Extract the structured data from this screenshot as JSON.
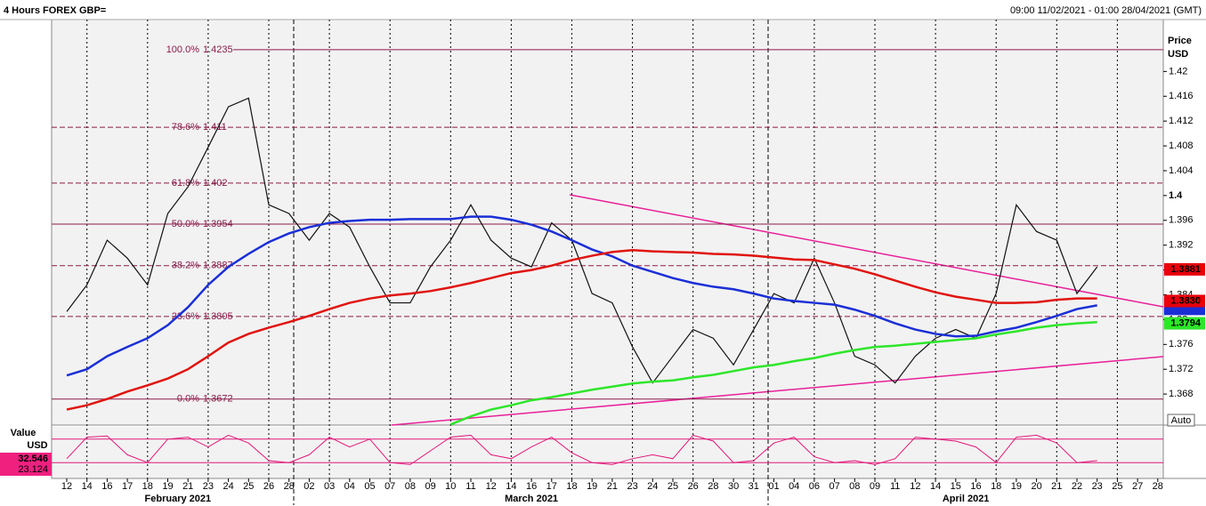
{
  "chart_data": {
    "type": "line",
    "title": "4 Hours FOREX GBP=",
    "subtitle": "09:00 11/02/2021 - 01:00 28/04/2021 (GMT)",
    "ylabel": "Price",
    "yunit": "USD",
    "categories": [
      "12",
      "14",
      "16",
      "17",
      "18",
      "19",
      "21",
      "23",
      "24",
      "25",
      "26",
      "28",
      "02",
      "03",
      "04",
      "05",
      "07",
      "08",
      "09",
      "10",
      "11",
      "12",
      "14",
      "16",
      "17",
      "18",
      "19",
      "21",
      "23",
      "24",
      "25",
      "26",
      "28",
      "30",
      "31",
      "01",
      "04",
      "06",
      "07",
      "08",
      "09",
      "11",
      "12",
      "14",
      "15",
      "16",
      "18",
      "19",
      "20",
      "21",
      "22",
      "23",
      "25",
      "27",
      "28"
    ],
    "months": [
      {
        "label": "February 2021",
        "start": 0
      },
      {
        "label": "March 2021",
        "start": 12
      },
      {
        "label": "April 2021",
        "start": 35
      }
    ],
    "ylim": [
      1.363,
      1.4308
    ],
    "yticks": [
      1.368,
      1.372,
      1.376,
      1.38,
      1.384,
      1.388,
      1.392,
      1.396,
      1.4,
      1.404,
      1.408,
      1.412,
      1.416,
      1.42
    ],
    "series": [
      {
        "color": "#111111",
        "values": [
          1.3813,
          1.3856,
          1.3928,
          1.3899,
          1.3856,
          1.3971,
          1.4014,
          1.4078,
          1.4143,
          1.4157,
          1.3985,
          1.3971,
          1.3928,
          1.3971,
          1.3949,
          1.3885,
          1.3827,
          1.3827,
          1.3885,
          1.3928,
          1.3985,
          1.3928,
          1.3899,
          1.3885,
          1.3956,
          1.3928,
          1.3842,
          1.3827,
          1.3756,
          1.3698,
          1.3741,
          1.3784,
          1.377,
          1.3727,
          1.3784,
          1.3842,
          1.3827,
          1.3899,
          1.3827,
          1.3741,
          1.3727,
          1.3698,
          1.3741,
          1.377,
          1.3784,
          1.377,
          1.3842,
          1.3985,
          1.3942,
          1.3928,
          1.3842,
          1.3885,
          null,
          null,
          null
        ]
      },
      {
        "color": "#1a2fd6",
        "values": [
          1.371,
          1.372,
          1.3741,
          1.3756,
          1.377,
          1.3791,
          1.382,
          1.3856,
          1.3885,
          1.3906,
          1.3925,
          1.3939,
          1.3949,
          1.3956,
          1.3959,
          1.3961,
          1.3961,
          1.3962,
          1.3962,
          1.3962,
          1.3966,
          1.3966,
          1.3961,
          1.3953,
          1.3942,
          1.3928,
          1.3913,
          1.3902,
          1.3887,
          1.3877,
          1.3867,
          1.3859,
          1.3853,
          1.3849,
          1.3842,
          1.3834,
          1.383,
          1.3827,
          1.3824,
          1.3816,
          1.3806,
          1.3794,
          1.3784,
          1.3777,
          1.3773,
          1.3774,
          1.3781,
          1.3787,
          1.3796,
          1.3806,
          1.3817,
          1.3823,
          null,
          null,
          null
        ]
      },
      {
        "color": "#e0140f",
        "values": [
          1.3655,
          1.3662,
          1.3672,
          1.3684,
          1.3694,
          1.3705,
          1.372,
          1.3741,
          1.3763,
          1.3777,
          1.3787,
          1.3796,
          1.3806,
          1.3817,
          1.3827,
          1.3834,
          1.3839,
          1.3842,
          1.3846,
          1.3852,
          1.3859,
          1.3867,
          1.3875,
          1.388,
          1.3887,
          1.3896,
          1.3903,
          1.3909,
          1.3912,
          1.391,
          1.3909,
          1.3908,
          1.3906,
          1.3905,
          1.3903,
          1.39,
          1.3897,
          1.3896,
          1.3889,
          1.3882,
          1.3873,
          1.3863,
          1.3853,
          1.3844,
          1.3837,
          1.3832,
          1.3827,
          1.3827,
          1.3828,
          1.3832,
          1.3834,
          1.3834,
          null,
          null,
          null
        ]
      },
      {
        "color": "#2ee62a",
        "values": [
          null,
          null,
          null,
          null,
          null,
          null,
          null,
          null,
          null,
          null,
          null,
          null,
          null,
          null,
          null,
          null,
          null,
          null,
          null,
          1.3631,
          1.3644,
          1.3655,
          1.3662,
          1.367,
          1.3675,
          1.3681,
          1.3687,
          1.3692,
          1.3697,
          1.37,
          1.3702,
          1.3707,
          1.3711,
          1.3717,
          1.3723,
          1.3727,
          1.3733,
          1.3738,
          1.3745,
          1.3751,
          1.3756,
          1.3758,
          1.3761,
          1.3764,
          1.3767,
          1.377,
          1.3776,
          1.3781,
          1.3787,
          1.3791,
          1.3794,
          1.3796,
          null,
          null,
          null
        ]
      }
    ],
    "fib_levels": [
      {
        "label": "100.0%",
        "value": 1.4235,
        "dashed": false
      },
      {
        "label": "78.6%",
        "value": 1.411,
        "dashed": true
      },
      {
        "label": "61.8%",
        "value": 1.402,
        "dashed": true
      },
      {
        "label": "50.0%",
        "value": 1.3954,
        "dashed": false
      },
      {
        "label": "38.2%",
        "value": 1.3887,
        "dashed": true
      },
      {
        "label": "23.6%",
        "value": 1.3805,
        "dashed": true
      },
      {
        "label": "0.0%",
        "value": 1.3672,
        "dashed": false
      }
    ],
    "price_tags": [
      {
        "value": 1.3881,
        "color": "#e8000b"
      },
      {
        "value": 1.383,
        "color": "#e8000b",
        "label": "1.3830"
      },
      {
        "value": 1.3794,
        "color": "#2ee62a"
      }
    ],
    "oscillator": {
      "label": "Value",
      "unit": "USD",
      "color": "#e0187a",
      "ylim": [
        0,
        100
      ],
      "levels": [
        80,
        20
      ],
      "values": [
        30,
        85,
        88,
        40,
        20,
        80,
        85,
        60,
        90,
        70,
        25,
        20,
        40,
        85,
        60,
        80,
        20,
        15,
        50,
        85,
        90,
        40,
        30,
        60,
        85,
        45,
        20,
        15,
        30,
        40,
        30,
        90,
        75,
        20,
        25,
        70,
        85,
        35,
        20,
        25,
        15,
        30,
        85,
        80,
        75,
        60,
        20,
        85,
        90,
        70,
        20,
        25,
        null,
        null,
        null
      ],
      "tags": [
        32.546,
        23.124
      ]
    },
    "button": "Auto"
  }
}
